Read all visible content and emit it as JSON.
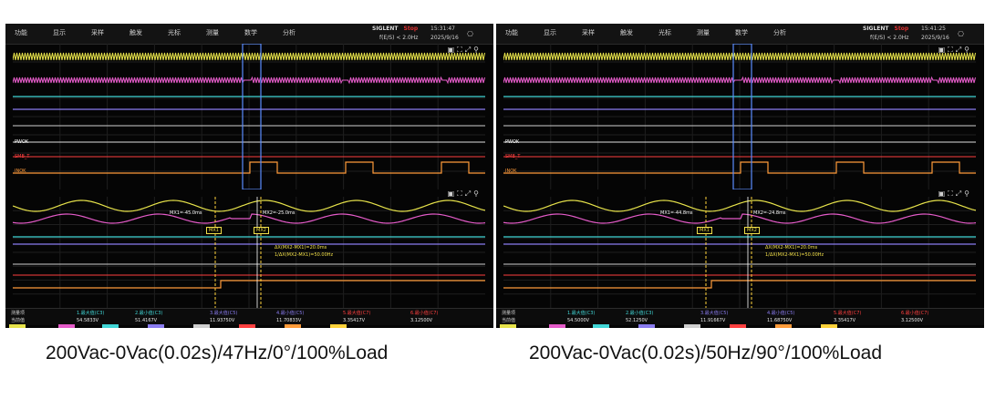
{
  "menu": [
    "功能",
    "显示",
    "采样",
    "触发",
    "光标",
    "测量",
    "数学",
    "分析"
  ],
  "colors": {
    "ch1": "#e6e24a",
    "ch2": "#e45bc8",
    "ch3": "#41d7d7",
    "ch4": "#8a7cf0",
    "ch5": "#cfcfcf",
    "ch6": "#ff4040",
    "ch7": "#ff9b3a",
    "ch8": "#ffd23a"
  },
  "panels": [
    {
      "brand": "SIGLENT",
      "stop": "Stop",
      "trigger": "f(E/S) < 2.0Hz",
      "time": "15:31:47",
      "date": "2025/9/16",
      "mx1": "MX1=-45.0ms",
      "mx2": "MX2=-25.0ms",
      "delta_x": "ΔX(MX2-MX1)=20.0ms",
      "inv_delta_x": "1/ΔX(MX2-MX1)=50.00Hz",
      "meas_head": "测量项",
      "meas_sub": "当前值",
      "meas": [
        {
          "label": "1.最大值(C3)",
          "value": "54.5833V"
        },
        {
          "label": "2.最小值(C3)",
          "value": "51.4167V"
        },
        {
          "label": "3.最大值(C5)",
          "value": "11.93750V"
        },
        {
          "label": "4.最小值(C5)",
          "value": "11.70833V"
        },
        {
          "label": "5.最大值(C7)",
          "value": "3.35417V"
        },
        {
          "label": "6.最小值(C7)",
          "value": "3.12500V"
        }
      ],
      "caption": "200Vac-0Vac(0.02s)/47Hz/0°/100%Load"
    },
    {
      "brand": "SIGLENT",
      "stop": "Stop",
      "trigger": "f(E/S) < 2.0Hz",
      "time": "15:41:25",
      "date": "2025/9/16",
      "mx1": "MX1=-44.8ms",
      "mx2": "MX2=-24.8ms",
      "delta_x": "ΔX(MX2-MX1)=20.0ms",
      "inv_delta_x": "1/ΔX(MX2-MX1)=50.00Hz",
      "meas_head": "测量项",
      "meas_sub": "当前值",
      "meas": [
        {
          "label": "1.最大值(C3)",
          "value": "54.5000V"
        },
        {
          "label": "2.最小值(C3)",
          "value": "52.1250V"
        },
        {
          "label": "3.最大值(C5)",
          "value": "11.91667V"
        },
        {
          "label": "4.最小值(C5)",
          "value": "11.68750V"
        },
        {
          "label": "5.最大值(C7)",
          "value": "3.35417V"
        },
        {
          "label": "6.最小值(C7)",
          "value": "3.12500V"
        }
      ],
      "caption": "200Vac-0Vac(0.02s)/50Hz/90°/100%Load"
    }
  ],
  "channel_labels": [
    "PWOK",
    "SMB_T",
    "INOK"
  ],
  "cursor_labels": [
    "MX1",
    "MX2"
  ],
  "icons": [
    "camera-icon",
    "fullscreen-icon",
    "zoom-icon",
    "lock-icon"
  ]
}
